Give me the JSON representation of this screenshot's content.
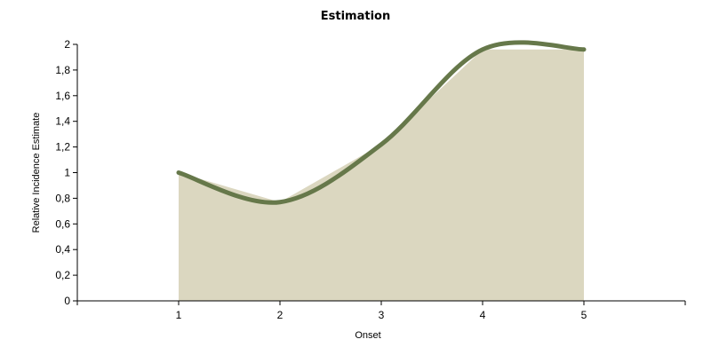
{
  "chart_data": {
    "type": "area",
    "title": "Estimation",
    "xlabel": "Onset",
    "ylabel": "Relative Incidence Estimate",
    "x": [
      1,
      2,
      3,
      4,
      5
    ],
    "y": [
      1.0,
      0.77,
      1.22,
      1.96,
      1.96
    ],
    "xlim": [
      0,
      6
    ],
    "ylim": [
      0,
      2
    ],
    "x_ticks": [
      "1",
      "2",
      "3",
      "4",
      "5"
    ],
    "y_ticks": [
      "0",
      "0,2",
      "0,4",
      "0,6",
      "0,8",
      "1",
      "1,2",
      "1,4",
      "1,6",
      "1,8",
      "2"
    ],
    "grid": false,
    "legend": "none",
    "colors": {
      "line": "#66784a",
      "fill": "#dbd7c0"
    }
  }
}
